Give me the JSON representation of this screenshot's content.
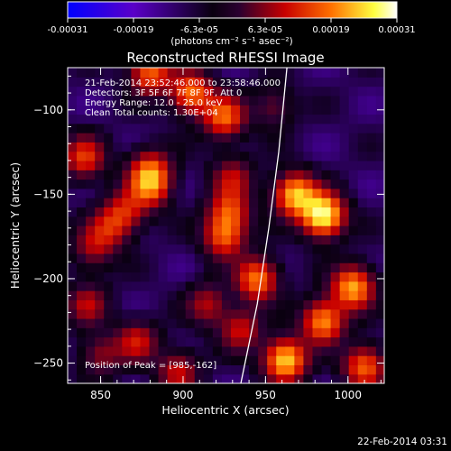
{
  "colorbar": {
    "tick_labels": [
      "-0.00031",
      "-0.00019",
      "-6.3e-05",
      "6.3e-05",
      "0.00019",
      "0.00031"
    ],
    "range": [
      -0.00031,
      0.00031
    ],
    "unit_label": "(photons cm⁻² s⁻¹ asec⁻²)",
    "colors": [
      "#0000ff",
      "#5a00c8",
      "#0a0010",
      "#2a0030",
      "#c80000",
      "#ff7000",
      "#ffff40",
      "#ffffff"
    ]
  },
  "chart_data": {
    "type": "heatmap",
    "title": "Reconstructed RHESSI Image",
    "xlabel": "Heliocentric X (arcsec)",
    "ylabel": "Heliocentric Y (arcsec)",
    "xlim": [
      830,
      1022
    ],
    "ylim": [
      -262,
      -75
    ],
    "x_ticks": [
      850,
      900,
      950,
      1000
    ],
    "x_tick_labels": [
      "850",
      "900",
      "950",
      "1000"
    ],
    "y_ticks": [
      -250,
      -200,
      -150,
      -100
    ],
    "y_tick_labels": [
      "−250",
      "−200",
      "−150",
      "−100"
    ],
    "annotations": [
      "21-Feb-2014 23:52:46.000 to 23:58:46.000",
      "Detectors: 3F 5F 6F 7F 8F 9F, Att 0",
      "Energy Range: 12.0 - 25.0 keV",
      "Clean    Total counts: 1.30E+04"
    ],
    "peak_label": "Position of Peak = [985,-162]",
    "peak": [
      985,
      -162
    ],
    "limb_curve": [
      [
        935,
        -262
      ],
      [
        945,
        -215
      ],
      [
        952,
        -170
      ],
      [
        958,
        -125
      ],
      [
        963,
        -75
      ]
    ],
    "sources": [
      {
        "x": 985,
        "y": -162,
        "intensity": 1.0
      },
      {
        "x": 968,
        "y": -150,
        "intensity": 0.8
      },
      {
        "x": 1003,
        "y": -205,
        "intensity": 0.75
      },
      {
        "x": 985,
        "y": -225,
        "intensity": 0.7
      },
      {
        "x": 962,
        "y": -248,
        "intensity": 0.85
      },
      {
        "x": 1010,
        "y": -252,
        "intensity": 0.6
      },
      {
        "x": 905,
        "y": -90,
        "intensity": 0.65
      },
      {
        "x": 925,
        "y": -104,
        "intensity": 0.6
      },
      {
        "x": 880,
        "y": -78,
        "intensity": 0.6
      },
      {
        "x": 840,
        "y": -128,
        "intensity": 0.5
      },
      {
        "x": 880,
        "y": -145,
        "intensity": 0.55
      },
      {
        "x": 880,
        "y": -135,
        "intensity": 0.45
      },
      {
        "x": 865,
        "y": -160,
        "intensity": 0.4
      },
      {
        "x": 855,
        "y": -170,
        "intensity": 0.35
      },
      {
        "x": 845,
        "y": -182,
        "intensity": 0.3
      },
      {
        "x": 842,
        "y": -215,
        "intensity": 0.35
      },
      {
        "x": 850,
        "y": -245,
        "intensity": 0.3
      },
      {
        "x": 872,
        "y": -237,
        "intensity": 0.4
      },
      {
        "x": 897,
        "y": -255,
        "intensity": 0.4
      },
      {
        "x": 925,
        "y": -175,
        "intensity": 0.55
      },
      {
        "x": 928,
        "y": -160,
        "intensity": 0.5
      },
      {
        "x": 945,
        "y": -200,
        "intensity": 0.65
      },
      {
        "x": 935,
        "y": -230,
        "intensity": 0.4
      },
      {
        "x": 915,
        "y": -215,
        "intensity": 0.35
      },
      {
        "x": 930,
        "y": -140,
        "intensity": 0.35
      },
      {
        "x": 955,
        "y": -98,
        "intensity": 0.25
      }
    ],
    "grid": false,
    "colorbar_position": "top"
  },
  "footer": {
    "date": "22-Feb-2014 03:31"
  }
}
